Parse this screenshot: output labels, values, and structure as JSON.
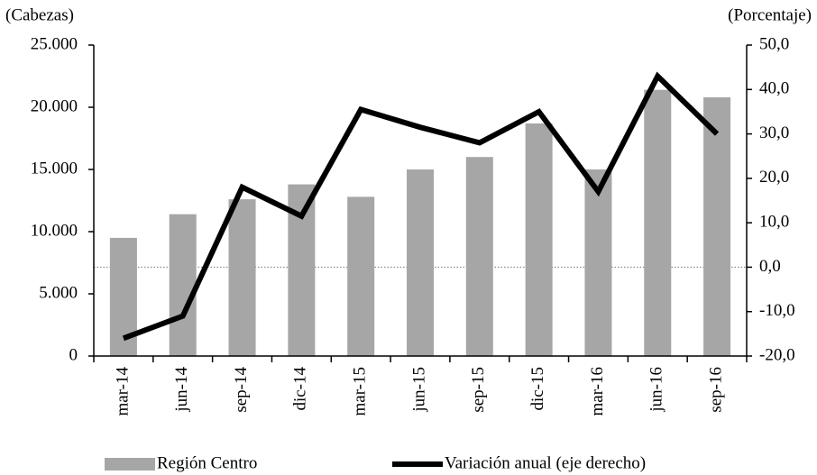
{
  "chart_data": {
    "type": "bar",
    "y_label": "(Cabezas)",
    "y2_label": "(Porcentaje)",
    "categories": [
      "mar-14",
      "jun-14",
      "sep-14",
      "dic-14",
      "mar-15",
      "jun-15",
      "sep-15",
      "dic-15",
      "mar-16",
      "jun-16",
      "sep-16"
    ],
    "series": [
      {
        "name": "Región Centro",
        "type": "bar",
        "color": "#a6a6a6",
        "axis": "y",
        "values": [
          9500,
          11400,
          12600,
          13800,
          12800,
          15000,
          16000,
          18700,
          15000,
          21400,
          20800
        ]
      },
      {
        "name": "Variación anual (eje derecho)",
        "type": "line",
        "color": "#000000",
        "axis": "y2",
        "values": [
          -16,
          -11,
          18,
          11.5,
          35.5,
          31.5,
          28,
          35,
          17,
          43,
          30
        ]
      }
    ],
    "ylim": [
      0,
      25000
    ],
    "yticks": [
      0,
      {
        "value": 5000,
        "label": "5.000"
      },
      {
        "value": 10000,
        "label": "10.000"
      },
      {
        "value": 15000,
        "label": "15.000"
      },
      {
        "value": 20000,
        "label": "20.000"
      },
      {
        "value": 25000,
        "label": "25.000"
      }
    ],
    "y2lim": [
      -20,
      50
    ],
    "y2ticks": [
      {
        "value": -20,
        "label": "-20,0"
      },
      {
        "value": -10,
        "label": "-10,0"
      },
      {
        "value": 0,
        "label": "0,0"
      },
      {
        "value": 10,
        "label": "10,0"
      },
      {
        "value": 20,
        "label": "20,0"
      },
      {
        "value": 30,
        "label": "30,0"
      },
      {
        "value": 40,
        "label": "40,0"
      },
      {
        "value": 50,
        "label": "50,0"
      }
    ],
    "legend": "bottom"
  }
}
